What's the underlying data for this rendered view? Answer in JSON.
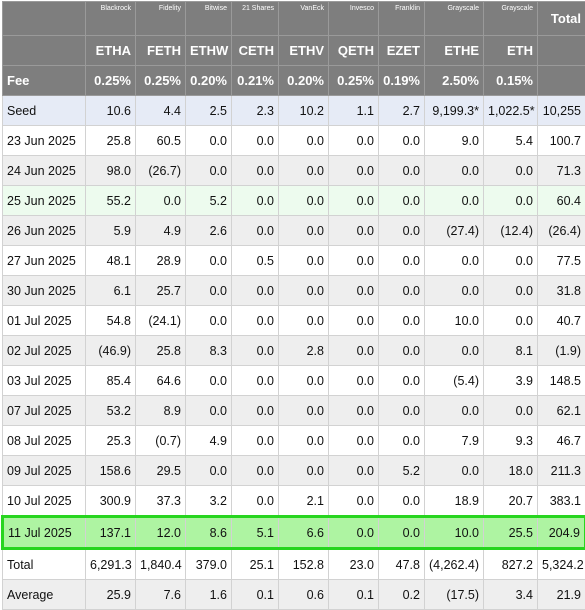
{
  "issuers": [
    "Blackrock",
    "Fidelity",
    "Bitwise",
    "21 Shares",
    "VanEck",
    "Invesco",
    "Franklin",
    "Grayscale",
    "Grayscale"
  ],
  "total_label": "Total",
  "tickers": [
    "ETHA",
    "FETH",
    "ETHW",
    "CETH",
    "ETHV",
    "QETH",
    "EZET",
    "ETHE",
    "ETH"
  ],
  "fee_label": "Fee",
  "fees": [
    "0.25%",
    "0.25%",
    "0.20%",
    "0.21%",
    "0.20%",
    "0.25%",
    "0.19%",
    "2.50%",
    "0.15%"
  ],
  "rows": [
    {
      "label": "Seed",
      "cells": [
        "10.6",
        "4.4",
        "2.5",
        "2.3",
        "10.2",
        "1.1",
        "2.7",
        "9,199.3*",
        "1,022.5*",
        "10,255"
      ]
    },
    {
      "label": "23 Jun 2025",
      "cells": [
        "25.8",
        "60.5",
        "0.0",
        "0.0",
        "0.0",
        "0.0",
        "0.0",
        "9.0",
        "5.4",
        "100.7"
      ]
    },
    {
      "label": "24 Jun 2025",
      "cells": [
        "98.0",
        "(26.7)",
        "0.0",
        "0.0",
        "0.0",
        "0.0",
        "0.0",
        "0.0",
        "0.0",
        "71.3"
      ]
    },
    {
      "label": "25 Jun 2025",
      "cells": [
        "55.2",
        "0.0",
        "5.2",
        "0.0",
        "0.0",
        "0.0",
        "0.0",
        "0.0",
        "0.0",
        "60.4"
      ]
    },
    {
      "label": "26 Jun 2025",
      "cells": [
        "5.9",
        "4.9",
        "2.6",
        "0.0",
        "0.0",
        "0.0",
        "0.0",
        "(27.4)",
        "(12.4)",
        "(26.4)"
      ]
    },
    {
      "label": "27 Jun 2025",
      "cells": [
        "48.1",
        "28.9",
        "0.0",
        "0.5",
        "0.0",
        "0.0",
        "0.0",
        "0.0",
        "0.0",
        "77.5"
      ]
    },
    {
      "label": "30 Jun 2025",
      "cells": [
        "6.1",
        "25.7",
        "0.0",
        "0.0",
        "0.0",
        "0.0",
        "0.0",
        "0.0",
        "0.0",
        "31.8"
      ]
    },
    {
      "label": "01 Jul 2025",
      "cells": [
        "54.8",
        "(24.1)",
        "0.0",
        "0.0",
        "0.0",
        "0.0",
        "0.0",
        "10.0",
        "0.0",
        "40.7"
      ]
    },
    {
      "label": "02 Jul 2025",
      "cells": [
        "(46.9)",
        "25.8",
        "8.3",
        "0.0",
        "2.8",
        "0.0",
        "0.0",
        "0.0",
        "8.1",
        "(1.9)"
      ]
    },
    {
      "label": "03 Jul 2025",
      "cells": [
        "85.4",
        "64.6",
        "0.0",
        "0.0",
        "0.0",
        "0.0",
        "0.0",
        "(5.4)",
        "3.9",
        "148.5"
      ]
    },
    {
      "label": "07 Jul 2025",
      "cells": [
        "53.2",
        "8.9",
        "0.0",
        "0.0",
        "0.0",
        "0.0",
        "0.0",
        "0.0",
        "0.0",
        "62.1"
      ]
    },
    {
      "label": "08 Jul 2025",
      "cells": [
        "25.3",
        "(0.7)",
        "4.9",
        "0.0",
        "0.0",
        "0.0",
        "0.0",
        "7.9",
        "9.3",
        "46.7"
      ]
    },
    {
      "label": "09 Jul 2025",
      "cells": [
        "158.6",
        "29.5",
        "0.0",
        "0.0",
        "0.0",
        "0.0",
        "5.2",
        "0.0",
        "18.0",
        "211.3"
      ]
    },
    {
      "label": "10 Jul 2025",
      "cells": [
        "300.9",
        "37.3",
        "3.2",
        "0.0",
        "2.1",
        "0.0",
        "0.0",
        "18.9",
        "20.7",
        "383.1"
      ]
    },
    {
      "label": "11 Jul 2025",
      "cells": [
        "137.1",
        "12.0",
        "8.6",
        "5.1",
        "6.6",
        "0.0",
        "0.0",
        "10.0",
        "25.5",
        "204.9"
      ]
    },
    {
      "label": "Total",
      "cells": [
        "6,291.3",
        "1,840.4",
        "379.0",
        "25.1",
        "152.8",
        "23.0",
        "47.8",
        "(4,262.4)",
        "827.2",
        "5,324.2"
      ]
    },
    {
      "label": "Average",
      "cells": [
        "25.9",
        "7.6",
        "1.6",
        "0.1",
        "0.6",
        "0.1",
        "0.2",
        "(17.5)",
        "3.4",
        "21.9"
      ]
    }
  ],
  "colors": {
    "header_bg": "#7e7e7e",
    "seed_bg": "#e6ebf6",
    "highlight_bg": "#aef4a2",
    "highlight_border": "#27d51f",
    "negative": "#e0262b"
  }
}
